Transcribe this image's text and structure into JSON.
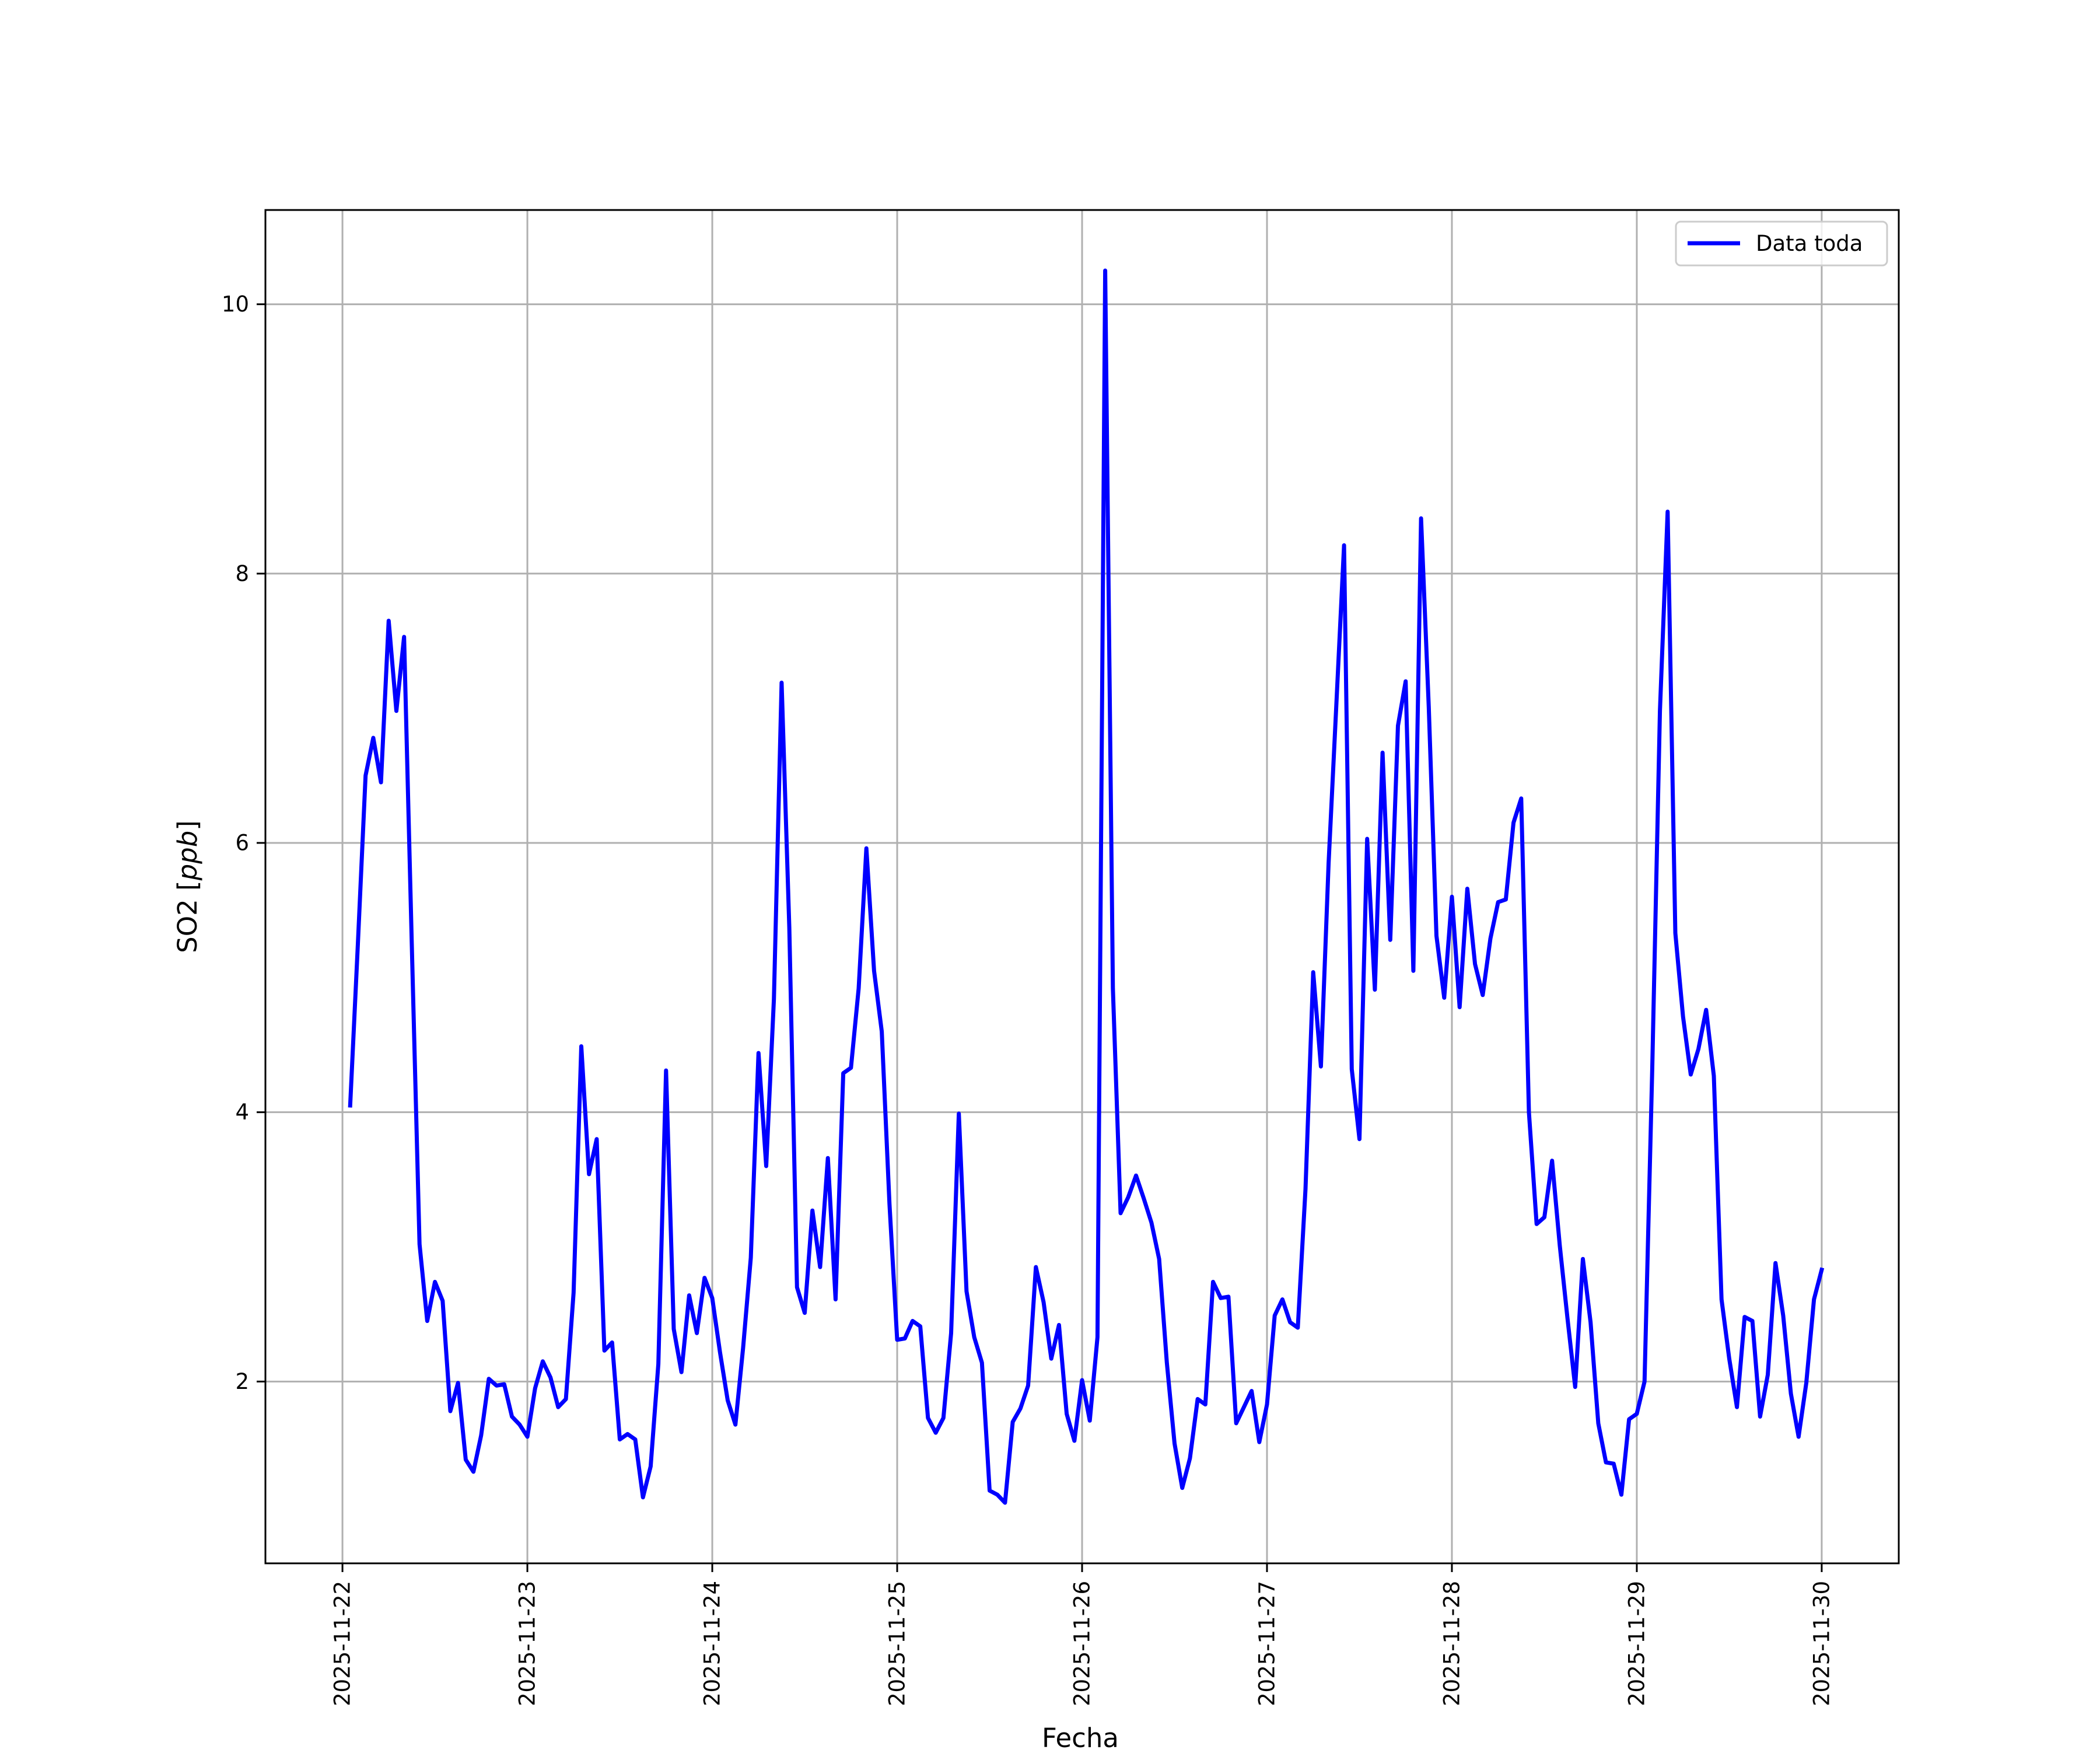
{
  "chart_data": {
    "type": "line",
    "title": "",
    "xlabel": "Fecha",
    "ylabel": "SO2 [ppb]",
    "ylabel_parts": {
      "text": "SO2 [",
      "unit": "ppb",
      "close": "]"
    },
    "x_ticks": [
      "2025-11-22",
      "2025-11-23",
      "2025-11-24",
      "2025-11-25",
      "2025-11-26",
      "2025-11-27",
      "2025-11-28",
      "2025-11-29",
      "2025-11-30"
    ],
    "y_ticks": [
      2,
      4,
      6,
      8,
      10
    ],
    "xlim": [
      "2025-11-21T14:00",
      "2025-11-30T10:00"
    ],
    "ylim": [
      0.65,
      10.7
    ],
    "grid": true,
    "legend_position": "top-right",
    "series": [
      {
        "name": "Data toda",
        "color": "#0000ff",
        "x": [
          "2025-11-22T01:00",
          "2025-11-22T02:00",
          "2025-11-22T03:00",
          "2025-11-22T04:00",
          "2025-11-22T05:00",
          "2025-11-22T06:00",
          "2025-11-22T07:00",
          "2025-11-22T08:00",
          "2025-11-22T09:00",
          "2025-11-22T10:00",
          "2025-11-22T11:00",
          "2025-11-22T12:00",
          "2025-11-22T13:00",
          "2025-11-22T14:00",
          "2025-11-22T15:00",
          "2025-11-22T16:00",
          "2025-11-22T17:00",
          "2025-11-22T18:00",
          "2025-11-22T19:00",
          "2025-11-22T20:00",
          "2025-11-22T21:00",
          "2025-11-22T22:00",
          "2025-11-22T23:00",
          "2025-11-23T00:00",
          "2025-11-23T01:00",
          "2025-11-23T02:00",
          "2025-11-23T03:00",
          "2025-11-23T04:00",
          "2025-11-23T05:00",
          "2025-11-23T06:00",
          "2025-11-23T07:00",
          "2025-11-23T08:00",
          "2025-11-23T09:00",
          "2025-11-23T10:00",
          "2025-11-23T11:00",
          "2025-11-23T12:00",
          "2025-11-23T13:00",
          "2025-11-23T14:00",
          "2025-11-23T15:00",
          "2025-11-23T16:00",
          "2025-11-23T17:00",
          "2025-11-23T18:00",
          "2025-11-23T19:00",
          "2025-11-23T20:00",
          "2025-11-23T21:00",
          "2025-11-23T22:00",
          "2025-11-23T23:00",
          "2025-11-24T00:00",
          "2025-11-24T01:00",
          "2025-11-24T02:00",
          "2025-11-24T03:00",
          "2025-11-24T04:00",
          "2025-11-24T05:00",
          "2025-11-24T06:00",
          "2025-11-24T07:00",
          "2025-11-24T08:00",
          "2025-11-24T09:00",
          "2025-11-24T10:00",
          "2025-11-24T11:00",
          "2025-11-24T12:00",
          "2025-11-24T13:00",
          "2025-11-24T14:00",
          "2025-11-24T15:00",
          "2025-11-24T16:00",
          "2025-11-24T17:00",
          "2025-11-24T18:00",
          "2025-11-24T19:00",
          "2025-11-24T20:00",
          "2025-11-24T21:00",
          "2025-11-24T22:00",
          "2025-11-24T23:00",
          "2025-11-25T00:00",
          "2025-11-25T01:00",
          "2025-11-25T02:00",
          "2025-11-25T03:00",
          "2025-11-25T04:00",
          "2025-11-25T05:00",
          "2025-11-25T06:00",
          "2025-11-25T07:00",
          "2025-11-25T08:00",
          "2025-11-25T09:00",
          "2025-11-25T10:00",
          "2025-11-25T11:00",
          "2025-11-25T12:00",
          "2025-11-25T13:00",
          "2025-11-25T14:00",
          "2025-11-25T15:00",
          "2025-11-25T16:00",
          "2025-11-25T17:00",
          "2025-11-25T18:00",
          "2025-11-25T19:00",
          "2025-11-25T20:00",
          "2025-11-25T21:00",
          "2025-11-25T22:00",
          "2025-11-25T23:00",
          "2025-11-26T00:00",
          "2025-11-26T01:00",
          "2025-11-26T02:00",
          "2025-11-26T03:00",
          "2025-11-26T04:00",
          "2025-11-26T05:00",
          "2025-11-26T06:00",
          "2025-11-26T07:00",
          "2025-11-26T08:00",
          "2025-11-26T09:00",
          "2025-11-26T10:00",
          "2025-11-26T11:00",
          "2025-11-26T12:00",
          "2025-11-26T13:00",
          "2025-11-26T14:00",
          "2025-11-26T15:00",
          "2025-11-26T16:00",
          "2025-11-26T17:00",
          "2025-11-26T18:00",
          "2025-11-26T19:00",
          "2025-11-26T20:00",
          "2025-11-26T21:00",
          "2025-11-26T22:00",
          "2025-11-26T23:00",
          "2025-11-27T00:00",
          "2025-11-27T01:00",
          "2025-11-27T02:00",
          "2025-11-27T03:00",
          "2025-11-27T04:00",
          "2025-11-27T05:00",
          "2025-11-27T06:00",
          "2025-11-27T07:00",
          "2025-11-27T08:00",
          "2025-11-27T09:00",
          "2025-11-27T10:00",
          "2025-11-27T11:00",
          "2025-11-27T12:00",
          "2025-11-27T13:00",
          "2025-11-27T14:00",
          "2025-11-27T15:00",
          "2025-11-27T16:00",
          "2025-11-27T17:00",
          "2025-11-27T18:00",
          "2025-11-27T19:00",
          "2025-11-27T20:00",
          "2025-11-27T21:00",
          "2025-11-27T22:00",
          "2025-11-27T23:00",
          "2025-11-28T00:00",
          "2025-11-28T01:00",
          "2025-11-28T02:00",
          "2025-11-28T03:00",
          "2025-11-28T04:00",
          "2025-11-28T05:00",
          "2025-11-28T06:00",
          "2025-11-28T07:00",
          "2025-11-28T08:00",
          "2025-11-28T09:00",
          "2025-11-28T10:00",
          "2025-11-28T11:00",
          "2025-11-28T12:00",
          "2025-11-28T13:00",
          "2025-11-28T14:00",
          "2025-11-28T15:00",
          "2025-11-28T16:00",
          "2025-11-28T17:00",
          "2025-11-28T18:00",
          "2025-11-28T19:00",
          "2025-11-28T20:00",
          "2025-11-28T21:00",
          "2025-11-28T22:00",
          "2025-11-28T23:00",
          "2025-11-29T00:00",
          "2025-11-29T01:00",
          "2025-11-29T02:00",
          "2025-11-29T03:00",
          "2025-11-29T04:00",
          "2025-11-29T05:00",
          "2025-11-29T06:00",
          "2025-11-29T07:00",
          "2025-11-29T08:00",
          "2025-11-29T09:00",
          "2025-11-29T10:00",
          "2025-11-29T11:00",
          "2025-11-29T12:00",
          "2025-11-29T13:00",
          "2025-11-29T14:00",
          "2025-11-29T15:00",
          "2025-11-29T16:00",
          "2025-11-29T17:00",
          "2025-11-29T18:00",
          "2025-11-29T19:00",
          "2025-11-29T20:00",
          "2025-11-29T21:00",
          "2025-11-29T22:00",
          "2025-11-29T23:00",
          "2025-11-30T00:00"
        ],
        "y": [
          4.05,
          5.25,
          6.5,
          6.78,
          6.45,
          7.65,
          6.98,
          7.53,
          5.25,
          3.02,
          2.45,
          2.74,
          2.6,
          1.78,
          1.99,
          1.42,
          1.33,
          1.6,
          2.02,
          1.97,
          1.98,
          1.74,
          1.68,
          1.59,
          1.95,
          2.15,
          2.03,
          1.81,
          1.87,
          2.66,
          4.49,
          3.54,
          3.8,
          2.23,
          2.29,
          1.57,
          1.61,
          1.57,
          1.14,
          1.37,
          2.13,
          4.31,
          2.39,
          2.07,
          2.64,
          2.36,
          2.77,
          2.62,
          2.22,
          1.86,
          1.68,
          2.25,
          2.92,
          4.44,
          3.6,
          4.84,
          7.19,
          5.37,
          2.7,
          2.51,
          3.27,
          2.85,
          3.66,
          2.61,
          4.29,
          4.33,
          4.92,
          5.96,
          5.05,
          4.6,
          3.32,
          2.31,
          2.32,
          2.45,
          2.41,
          1.73,
          1.62,
          1.73,
          2.36,
          3.99,
          2.67,
          2.33,
          2.14,
          1.19,
          1.16,
          1.1,
          1.7,
          1.8,
          1.97,
          2.85,
          2.59,
          2.17,
          2.42,
          1.76,
          1.56,
          2.01,
          1.71,
          2.33,
          10.25,
          4.92,
          3.25,
          3.37,
          3.53,
          3.36,
          3.18,
          2.91,
          2.14,
          1.54,
          1.21,
          1.43,
          1.87,
          1.83,
          2.74,
          2.62,
          2.63,
          1.69,
          1.81,
          1.93,
          1.55,
          1.83,
          2.49,
          2.61,
          2.44,
          2.4,
          3.43,
          5.04,
          4.34,
          5.85,
          7.02,
          8.21,
          4.32,
          3.8,
          6.03,
          4.91,
          6.67,
          5.28,
          6.87,
          7.2,
          5.05,
          8.41,
          7.01,
          5.31,
          4.85,
          5.6,
          4.78,
          5.66,
          5.1,
          4.87,
          5.29,
          5.56,
          5.58,
          6.15,
          6.33,
          4.0,
          3.17,
          3.22,
          3.64,
          3.01,
          2.47,
          1.96,
          2.91,
          2.44,
          1.69,
          1.4,
          1.39,
          1.16,
          1.72,
          1.76,
          2.0,
          4.32,
          6.98,
          8.46,
          5.33,
          4.71,
          4.28,
          4.47,
          4.76,
          4.27,
          2.61,
          2.17,
          1.81,
          2.48,
          2.45,
          1.74,
          2.05,
          2.88,
          2.49,
          1.91,
          1.59,
          1.99,
          2.61,
          2.83
        ]
      }
    ]
  }
}
